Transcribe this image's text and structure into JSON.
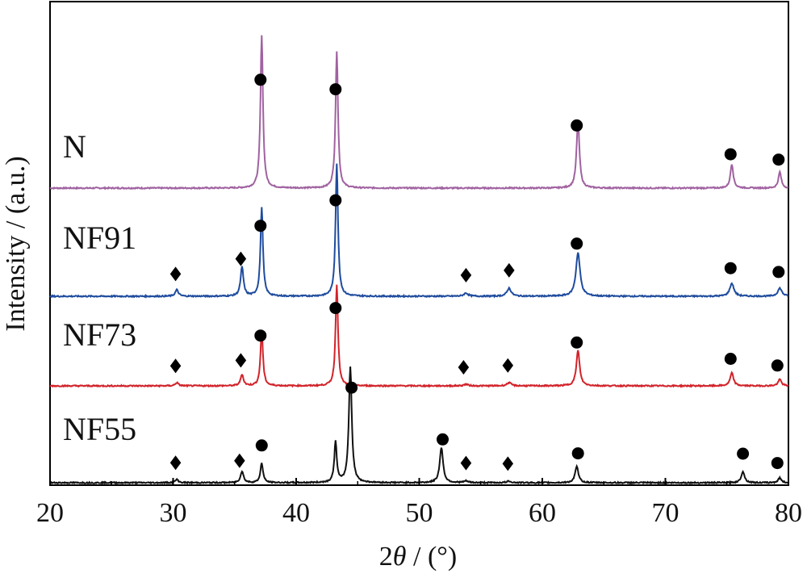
{
  "chart_data": {
    "type": "line",
    "xlabel_prefix": "2",
    "xlabel_theta": "θ",
    "xlabel_suffix": " / (°)",
    "ylabel": "Intensity / (a.u.)",
    "xlim": [
      20,
      80
    ],
    "xticks": [
      "20",
      "30",
      "40",
      "50",
      "60",
      "70",
      "80"
    ],
    "series": [
      {
        "name": "N",
        "color": "#a062a0",
        "peaks": [
          [
            37.2,
            0.95,
            0.12
          ],
          [
            43.3,
            0.85,
            0.12
          ],
          [
            62.9,
            0.42,
            0.14
          ],
          [
            75.4,
            0.15,
            0.14
          ],
          [
            79.3,
            0.1,
            0.14
          ]
        ],
        "markers": [
          {
            "x": 37.1,
            "shape": "circle"
          },
          {
            "x": 43.2,
            "shape": "circle"
          },
          {
            "x": 62.8,
            "shape": "circle"
          },
          {
            "x": 75.3,
            "shape": "circle"
          },
          {
            "x": 79.2,
            "shape": "circle"
          }
        ]
      },
      {
        "name": "NF91",
        "color": "#1f4c9e",
        "peaks": [
          [
            30.3,
            0.04,
            0.15
          ],
          [
            35.6,
            0.18,
            0.14
          ],
          [
            37.2,
            0.55,
            0.12
          ],
          [
            43.3,
            0.82,
            0.12
          ],
          [
            53.8,
            0.02,
            0.2
          ],
          [
            57.3,
            0.05,
            0.2
          ],
          [
            62.9,
            0.27,
            0.2
          ],
          [
            75.4,
            0.08,
            0.2
          ],
          [
            79.3,
            0.05,
            0.2
          ]
        ],
        "markers": [
          {
            "x": 30.2,
            "shape": "diamond"
          },
          {
            "x": 35.5,
            "shape": "diamond"
          },
          {
            "x": 37.1,
            "shape": "circle"
          },
          {
            "x": 43.2,
            "shape": "circle"
          },
          {
            "x": 53.8,
            "shape": "diamond"
          },
          {
            "x": 57.3,
            "shape": "diamond"
          },
          {
            "x": 62.8,
            "shape": "circle"
          },
          {
            "x": 75.3,
            "shape": "circle"
          },
          {
            "x": 79.2,
            "shape": "circle"
          }
        ]
      },
      {
        "name": "NF73",
        "color": "#d2232a",
        "peaks": [
          [
            30.3,
            0.02,
            0.15
          ],
          [
            35.6,
            0.07,
            0.14
          ],
          [
            37.2,
            0.34,
            0.12
          ],
          [
            43.3,
            0.63,
            0.12
          ],
          [
            53.8,
            0.01,
            0.2
          ],
          [
            57.3,
            0.02,
            0.2
          ],
          [
            62.9,
            0.22,
            0.16
          ],
          [
            75.4,
            0.08,
            0.16
          ],
          [
            79.3,
            0.04,
            0.16
          ]
        ],
        "markers": [
          {
            "x": 30.2,
            "shape": "diamond"
          },
          {
            "x": 35.5,
            "shape": "diamond"
          },
          {
            "x": 37.1,
            "shape": "circle"
          },
          {
            "x": 43.2,
            "shape": "circle"
          },
          {
            "x": 53.6,
            "shape": "diamond"
          },
          {
            "x": 57.2,
            "shape": "diamond"
          },
          {
            "x": 62.8,
            "shape": "circle"
          },
          {
            "x": 75.3,
            "shape": "circle"
          },
          {
            "x": 79.1,
            "shape": "circle"
          }
        ]
      },
      {
        "name": "NF55",
        "color": "#111111",
        "peaks": [
          [
            30.3,
            0.02,
            0.15
          ],
          [
            35.6,
            0.07,
            0.15
          ],
          [
            37.2,
            0.12,
            0.13
          ],
          [
            43.2,
            0.25,
            0.12
          ],
          [
            44.4,
            0.72,
            0.14
          ],
          [
            51.8,
            0.22,
            0.16
          ],
          [
            53.8,
            0.01,
            0.2
          ],
          [
            57.3,
            0.01,
            0.2
          ],
          [
            62.8,
            0.1,
            0.16
          ],
          [
            76.3,
            0.07,
            0.16
          ],
          [
            79.3,
            0.03,
            0.16
          ]
        ],
        "markers": [
          {
            "x": 30.2,
            "shape": "diamond"
          },
          {
            "x": 35.4,
            "shape": "diamond"
          },
          {
            "x": 37.2,
            "shape": "circle"
          },
          {
            "x": 44.5,
            "shape": "circle"
          },
          {
            "x": 51.9,
            "shape": "circle"
          },
          {
            "x": 53.8,
            "shape": "diamond"
          },
          {
            "x": 57.2,
            "shape": "diamond"
          },
          {
            "x": 62.9,
            "shape": "circle"
          },
          {
            "x": 76.3,
            "shape": "circle"
          },
          {
            "x": 79.1,
            "shape": "circle"
          }
        ]
      }
    ]
  }
}
